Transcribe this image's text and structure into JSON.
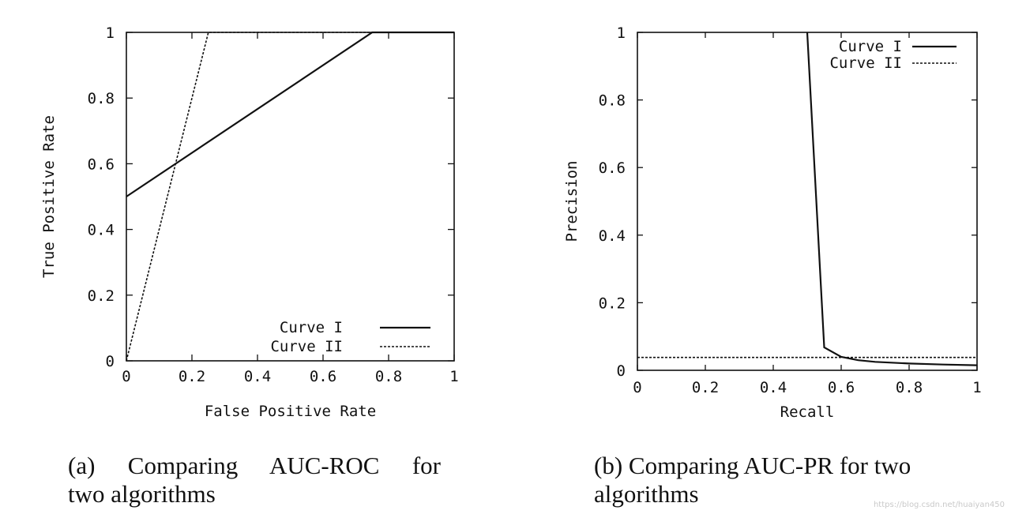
{
  "chart_data": [
    {
      "type": "line",
      "title": "",
      "xlabel": "False Positive Rate",
      "ylabel": "True Positive Rate",
      "xlim": [
        0,
        1
      ],
      "ylim": [
        0,
        1
      ],
      "x_ticks": [
        0,
        0.2,
        0.4,
        0.6,
        0.8,
        1
      ],
      "x_tick_labels": [
        "0",
        "0.2",
        "0.4",
        "0.6",
        "0.8",
        "1"
      ],
      "y_ticks": [
        0,
        0.2,
        0.4,
        0.6,
        0.8,
        1
      ],
      "y_tick_labels": [
        "0",
        "0.2",
        "0.4",
        "0.6",
        "0.8",
        "1"
      ],
      "grid": false,
      "legend_position": "bottom-right",
      "series": [
        {
          "name": "Curve I",
          "style": "solid",
          "x": [
            0,
            0.75,
            1
          ],
          "y": [
            0.5,
            1,
            1
          ]
        },
        {
          "name": "Curve II",
          "style": "dashed",
          "x": [
            0,
            0.25,
            1
          ],
          "y": [
            0,
            1,
            1
          ]
        }
      ]
    },
    {
      "type": "line",
      "title": "",
      "xlabel": "Recall",
      "ylabel": "Precision",
      "xlim": [
        0,
        1
      ],
      "ylim": [
        0,
        1
      ],
      "x_ticks": [
        0,
        0.2,
        0.4,
        0.6,
        0.8,
        1
      ],
      "x_tick_labels": [
        "0",
        "0.2",
        "0.4",
        "0.6",
        "0.8",
        "1"
      ],
      "y_ticks": [
        0,
        0.2,
        0.4,
        0.6,
        0.8,
        1
      ],
      "y_tick_labels": [
        "0",
        "0.2",
        "0.4",
        "0.6",
        "0.8",
        "1"
      ],
      "grid": false,
      "legend_position": "top-right",
      "series": [
        {
          "name": "Curve I",
          "style": "solid",
          "x": [
            0.5,
            0.55,
            0.6,
            0.65,
            0.7,
            0.8,
            0.9,
            1.0
          ],
          "y": [
            1.0,
            0.068,
            0.04,
            0.03,
            0.025,
            0.02,
            0.017,
            0.015
          ]
        },
        {
          "name": "Curve II",
          "style": "dashed",
          "x": [
            0,
            1
          ],
          "y": [
            0.038,
            0.038
          ]
        }
      ]
    }
  ],
  "captions": {
    "a_line1": "(a) Comparing AUC-ROC for",
    "a_line2": "two algorithms",
    "b_line1": "(b) Comparing AUC-PR for two",
    "b_line2": "algorithms"
  },
  "watermark": "https://blog.csdn.net/huaiyan450"
}
